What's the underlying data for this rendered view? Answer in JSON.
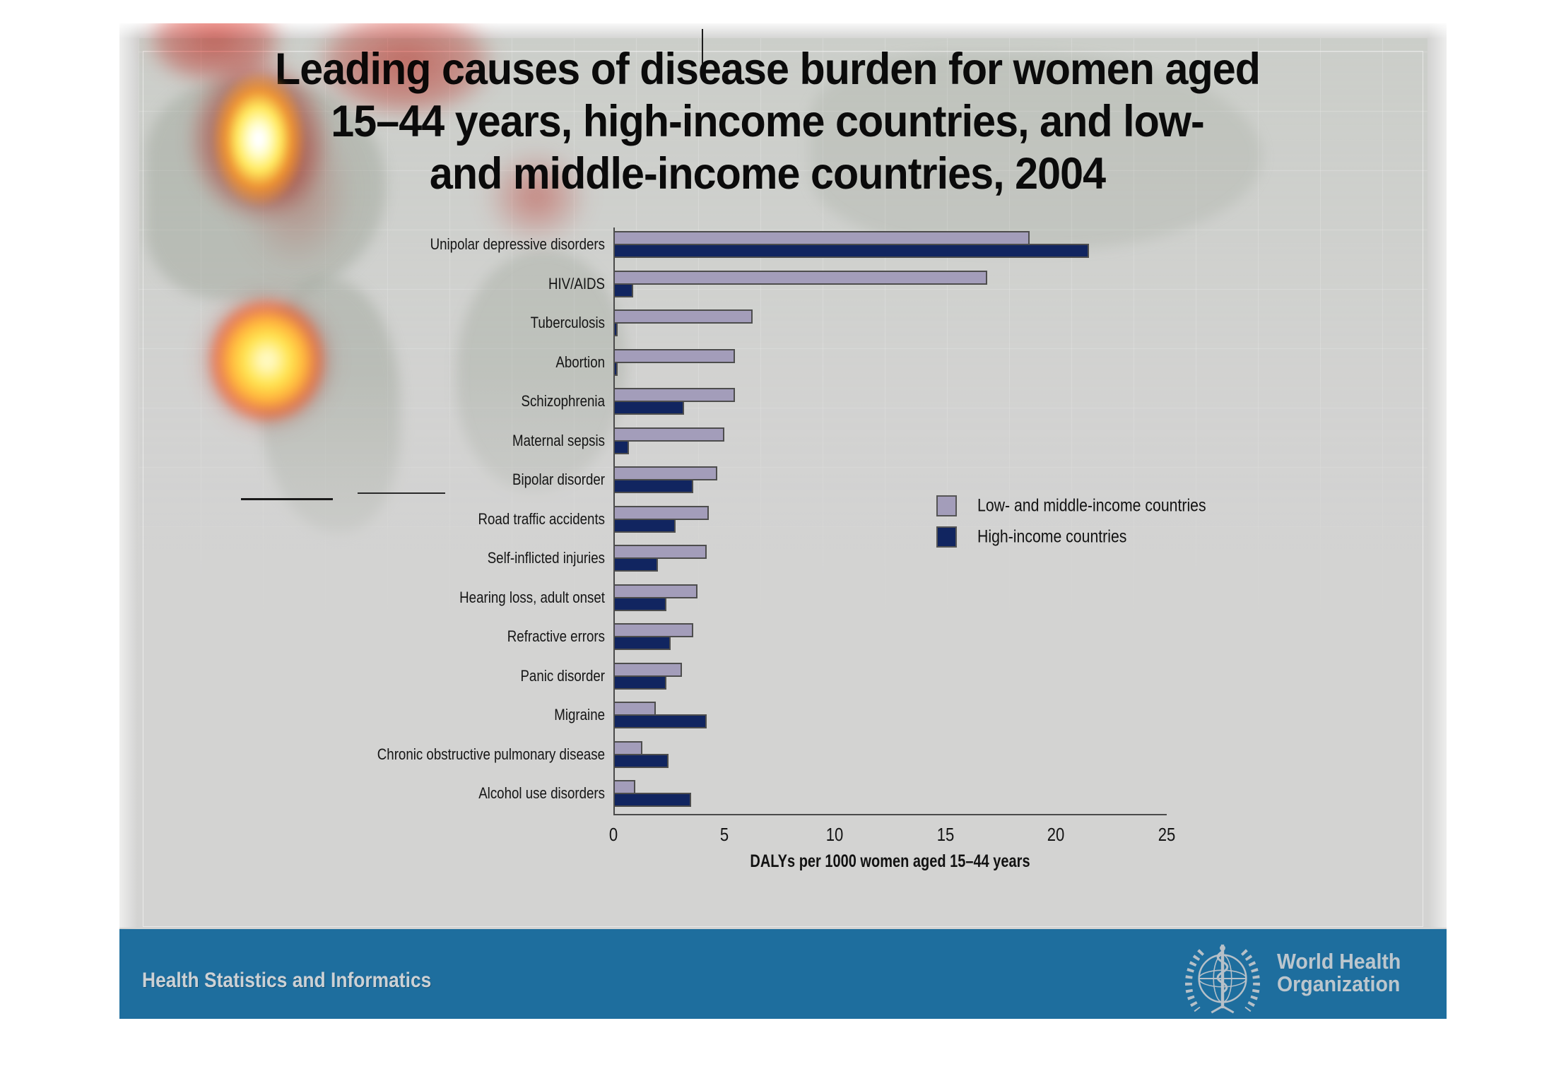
{
  "slide": {
    "title_lines": [
      "Leading causes of disease burden for women aged",
      "15–44 years, high-income countries, and low-",
      "and middle-income countries, 2004"
    ],
    "footer": {
      "department": "Health Statistics and Informatics",
      "logo_icon": "who-emblem",
      "org_name_line1": "World Health",
      "org_name_line2": "Organization"
    }
  },
  "chart_data": {
    "type": "bar",
    "orientation": "horizontal",
    "title": "",
    "categories": [
      "Unipolar depressive disorders",
      "HIV/AIDS",
      "Tuberculosis",
      "Abortion",
      "Schizophrenia",
      "Maternal sepsis",
      "Bipolar disorder",
      "Road traffic accidents",
      "Self-inflicted injuries",
      "Hearing loss, adult onset",
      "Refractive errors",
      "Panic disorder",
      "Migraine",
      "Chronic obstructive pulmonary disease",
      "Alcohol use disorders"
    ],
    "series": [
      {
        "name": "Low- and middle-income countries",
        "color": "#a39dba",
        "values": [
          18.8,
          16.9,
          6.3,
          5.5,
          5.5,
          5.0,
          4.7,
          4.3,
          4.2,
          3.8,
          3.6,
          3.1,
          1.9,
          1.3,
          1.0
        ]
      },
      {
        "name": "High-income countries",
        "color": "#112560",
        "values": [
          21.5,
          0.9,
          0.2,
          0.2,
          3.2,
          0.7,
          3.6,
          2.8,
          2.0,
          2.4,
          2.6,
          2.4,
          4.2,
          2.5,
          3.5
        ]
      }
    ],
    "xlabel": "DALYs per 1000 women aged 15–44 years",
    "ylabel": "",
    "xlim": [
      0,
      25
    ],
    "xticks": [
      0,
      5,
      10,
      15,
      20,
      25
    ],
    "grid": false,
    "legend_position": "right-middle",
    "bar_border_color": "#4d4d4d"
  }
}
